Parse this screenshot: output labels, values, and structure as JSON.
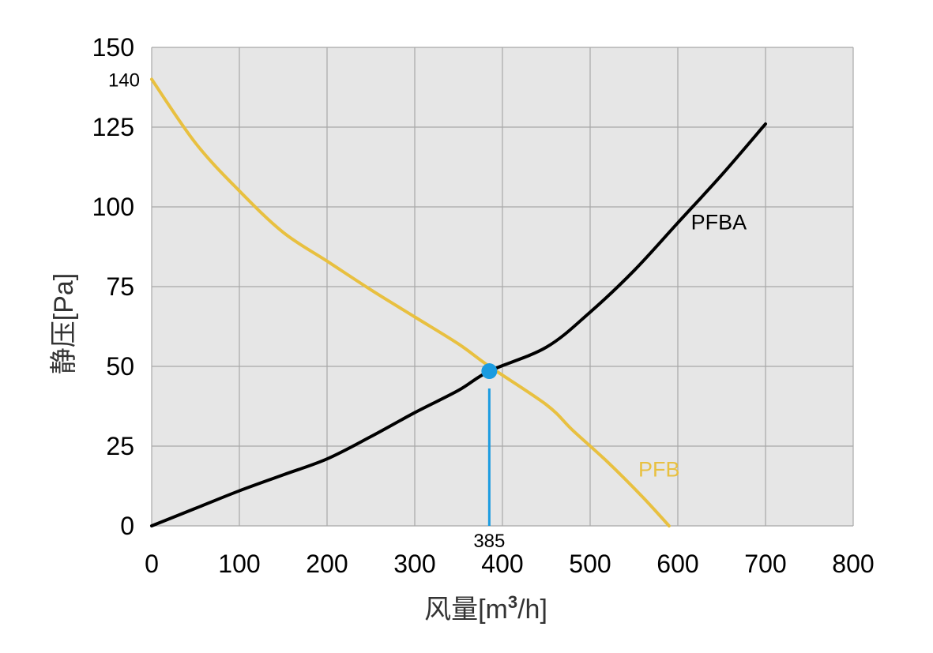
{
  "chart_data": {
    "type": "line",
    "title": "",
    "xlabel": "风量[m³/h]",
    "xlabel_parts": {
      "main": "风量[m",
      "sup": "3",
      "tail": "/h]"
    },
    "ylabel": "静压[Pa]",
    "xlim": [
      0,
      800
    ],
    "ylim": [
      0,
      150
    ],
    "xticks": [
      0,
      100,
      200,
      300,
      400,
      500,
      600,
      700,
      800
    ],
    "yticks": [
      0,
      25,
      50,
      75,
      100,
      125,
      150
    ],
    "grid": true,
    "series": [
      {
        "name": "PFBA",
        "color": "#000000",
        "points": [
          [
            0,
            0
          ],
          [
            50,
            5.5
          ],
          [
            100,
            11
          ],
          [
            150,
            16
          ],
          [
            200,
            21
          ],
          [
            250,
            28
          ],
          [
            300,
            35.5
          ],
          [
            350,
            42.5
          ],
          [
            385,
            48.5
          ],
          [
            450,
            56
          ],
          [
            500,
            67
          ],
          [
            550,
            80
          ],
          [
            600,
            95
          ],
          [
            650,
            110
          ],
          [
            700,
            126
          ]
        ]
      },
      {
        "name": "PFB",
        "color": "#e8c040",
        "points": [
          [
            0,
            140
          ],
          [
            50,
            120
          ],
          [
            100,
            105
          ],
          [
            150,
            92
          ],
          [
            200,
            83
          ],
          [
            250,
            74
          ],
          [
            300,
            65.5
          ],
          [
            350,
            57
          ],
          [
            385,
            50
          ],
          [
            450,
            38
          ],
          [
            480,
            30
          ],
          [
            520,
            20
          ],
          [
            560,
            9
          ],
          [
            590,
            0
          ]
        ]
      }
    ],
    "annotations": {
      "intersection": {
        "x": 385,
        "y": 48.5,
        "color": "#1a9be0"
      },
      "y_start_label": {
        "value": 140,
        "text": "140"
      },
      "x_marker_label": {
        "value": 385,
        "text": "385"
      }
    }
  }
}
